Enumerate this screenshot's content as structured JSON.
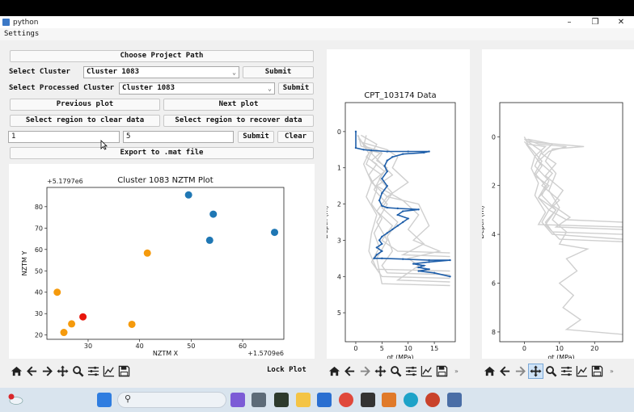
{
  "window": {
    "title": "python"
  },
  "menu": {
    "settings": "Settings"
  },
  "controls": {
    "choose_path": "Choose Project Path",
    "select_cluster_label": "Select Cluster",
    "select_cluster_value": "Cluster 1083",
    "submit1": "Submit",
    "select_processed_label": "Select Processed Cluster",
    "select_processed_value": "Cluster 1083",
    "submit2": "Submit",
    "prev_plot": "Previous plot",
    "next_plot": "Next plot",
    "clear_region": "Select region to clear data",
    "recover_region": "Select region to recover data",
    "input_a": "1",
    "input_b": "5",
    "submit3": "Submit",
    "clear": "Clear",
    "export": "Export to .mat file",
    "lock_plot": "Lock Plot"
  },
  "scatter_chart": {
    "chart_data": {
      "type": "scatter",
      "title": "Cluster 1083 NZTM Plot",
      "xlabel": "NZTM X",
      "ylabel": "NZTM Y",
      "x_offset_label": "+1.5709e6",
      "y_offset_label": "+5.1797e6",
      "xlim": [
        22,
        68
      ],
      "ylim": [
        18,
        89
      ],
      "xticks": [
        30,
        40,
        50,
        60
      ],
      "yticks": [
        20,
        30,
        40,
        50,
        60,
        70,
        80
      ],
      "points": [
        {
          "x": 49.5,
          "y": 85.5,
          "color": "#1f77b4"
        },
        {
          "x": 54.3,
          "y": 76.5,
          "color": "#1f77b4"
        },
        {
          "x": 53.6,
          "y": 64.3,
          "color": "#1f77b4"
        },
        {
          "x": 66.2,
          "y": 68.0,
          "color": "#1f77b4"
        },
        {
          "x": 41.5,
          "y": 58.3,
          "color": "#f59a0c"
        },
        {
          "x": 24.0,
          "y": 40.0,
          "color": "#f59a0c"
        },
        {
          "x": 29.0,
          "y": 28.5,
          "color": "#e8160c"
        },
        {
          "x": 26.8,
          "y": 25.2,
          "color": "#f59a0c"
        },
        {
          "x": 38.5,
          "y": 25.0,
          "color": "#f59a0c"
        },
        {
          "x": 25.3,
          "y": 21.2,
          "color": "#f59a0c"
        }
      ]
    }
  },
  "cpt_chart": {
    "chart_data": {
      "type": "line",
      "title": "CPT_103174 Data",
      "xlabel": "qt (MPa)",
      "ylabel": "Depth (m)",
      "xlim": [
        -2,
        19
      ],
      "ylim": [
        5.8,
        -0.8
      ],
      "xticks": [
        0,
        5,
        10,
        15
      ],
      "yticks": [
        0,
        1,
        2,
        3,
        4,
        5
      ],
      "highlight_color": "#1f5faa",
      "background_color": "#cfcfcf",
      "series": [
        {
          "highlight": true,
          "points": [
            [
              0,
              0
            ],
            [
              0,
              0.45
            ],
            [
              1.5,
              0.5
            ],
            [
              3,
              0.52
            ],
            [
              6,
              0.55
            ],
            [
              10,
              0.55
            ],
            [
              14,
              0.55
            ],
            [
              13,
              0.58
            ],
            [
              9,
              0.62
            ],
            [
              7,
              0.7
            ],
            [
              6,
              0.8
            ],
            [
              5.5,
              0.95
            ],
            [
              6,
              1.1
            ],
            [
              5,
              1.3
            ],
            [
              6,
              1.5
            ],
            [
              5,
              1.7
            ],
            [
              4.5,
              1.9
            ],
            [
              5,
              2.05
            ],
            [
              6,
              2.1
            ],
            [
              8,
              2.12
            ],
            [
              12,
              2.15
            ],
            [
              9,
              2.2
            ],
            [
              8,
              2.3
            ],
            [
              10,
              2.4
            ],
            [
              9,
              2.5
            ],
            [
              8,
              2.6
            ],
            [
              7,
              2.7
            ],
            [
              6,
              2.8
            ],
            [
              5,
              2.9
            ],
            [
              4.5,
              3.0
            ],
            [
              5,
              3.1
            ],
            [
              4,
              3.2
            ],
            [
              5,
              3.3
            ],
            [
              4,
              3.4
            ],
            [
              3.5,
              3.5
            ],
            [
              5,
              3.5
            ],
            [
              9,
              3.52
            ],
            [
              14,
              3.55
            ],
            [
              18,
              3.55
            ],
            [
              14,
              3.6
            ],
            [
              11,
              3.65
            ],
            [
              13,
              3.7
            ],
            [
              12,
              3.75
            ],
            [
              14,
              3.8
            ],
            [
              12,
              3.85
            ],
            [
              15,
              3.9
            ],
            [
              18,
              4.0
            ]
          ]
        },
        {
          "highlight": false,
          "points": [
            [
              0.5,
              0.1
            ],
            [
              1,
              0.4
            ],
            [
              3,
              0.5
            ],
            [
              2,
              0.7
            ],
            [
              4,
              0.9
            ],
            [
              2.5,
              1.2
            ],
            [
              4,
              1.6
            ],
            [
              3,
              2.0
            ],
            [
              5,
              2.4
            ],
            [
              3.5,
              2.8
            ],
            [
              4.5,
              3.2
            ],
            [
              3,
              3.6
            ],
            [
              5,
              4.0
            ],
            [
              18,
              4.05
            ]
          ]
        },
        {
          "highlight": false,
          "points": [
            [
              0.8,
              0.2
            ],
            [
              2,
              0.5
            ],
            [
              5,
              0.6
            ],
            [
              4,
              0.8
            ],
            [
              6,
              1.0
            ],
            [
              4.5,
              1.3
            ],
            [
              7,
              1.7
            ],
            [
              5,
              2.1
            ],
            [
              8,
              2.5
            ],
            [
              6,
              2.9
            ],
            [
              7,
              3.3
            ],
            [
              5,
              3.7
            ],
            [
              6,
              3.9
            ],
            [
              18,
              3.95
            ]
          ]
        },
        {
          "highlight": false,
          "points": [
            [
              1,
              0.1
            ],
            [
              4,
              0.35
            ],
            [
              3,
              0.6
            ],
            [
              5,
              0.9
            ],
            [
              7,
              1.2
            ],
            [
              4,
              1.5
            ],
            [
              9,
              1.9
            ],
            [
              12,
              2.3
            ],
            [
              10,
              2.7
            ],
            [
              13,
              3.1
            ],
            [
              9,
              3.4
            ],
            [
              18,
              3.45
            ]
          ]
        },
        {
          "highlight": false,
          "points": [
            [
              0.3,
              0.1
            ],
            [
              2.5,
              0.6
            ],
            [
              1.5,
              0.9
            ],
            [
              3,
              1.4
            ],
            [
              2,
              1.8
            ],
            [
              4,
              2.3
            ],
            [
              3,
              2.8
            ],
            [
              2.5,
              3.3
            ],
            [
              4,
              3.8
            ],
            [
              18,
              3.85
            ]
          ]
        },
        {
          "highlight": false,
          "points": [
            [
              1.2,
              0.3
            ],
            [
              6,
              0.5
            ],
            [
              8,
              0.7
            ],
            [
              7,
              1.0
            ],
            [
              10,
              1.4
            ],
            [
              6,
              1.8
            ],
            [
              12,
              2.0
            ],
            [
              14,
              2.6
            ],
            [
              11,
              3.0
            ],
            [
              16,
              3.3
            ],
            [
              10,
              3.5
            ],
            [
              12,
              3.7
            ],
            [
              8,
              4.1
            ],
            [
              18,
              4.15
            ]
          ]
        },
        {
          "highlight": false,
          "points": [
            [
              0.5,
              0.2
            ],
            [
              3,
              0.55
            ],
            [
              2,
              0.9
            ],
            [
              5,
              1.2
            ],
            [
              3.5,
              1.6
            ],
            [
              6,
              2.0
            ],
            [
              4,
              2.5
            ],
            [
              6,
              3.0
            ],
            [
              4,
              3.5
            ],
            [
              5,
              4.2
            ],
            [
              18,
              4.25
            ]
          ]
        },
        {
          "highlight": false,
          "points": [
            [
              2,
              0.1
            ],
            [
              1.5,
              0.4
            ],
            [
              5,
              0.55
            ],
            [
              3,
              0.8
            ],
            [
              5.5,
              1.1
            ],
            [
              3,
              1.4
            ],
            [
              6,
              1.8
            ],
            [
              4,
              2.2
            ],
            [
              7,
              2.6
            ],
            [
              5,
              3.0
            ],
            [
              8,
              3.3
            ],
            [
              18,
              3.35
            ]
          ]
        }
      ]
    }
  },
  "right_chart": {
    "chart_data": {
      "type": "line",
      "title": "",
      "xlabel": "qt (MPa)",
      "ylabel": "Depth (m)",
      "xlim": [
        -7,
        28
      ],
      "ylim": [
        8.4,
        -1.4
      ],
      "xticks": [
        0,
        10,
        20
      ],
      "yticks": [
        0,
        2,
        4,
        6,
        8
      ],
      "background_color": "#cfcfcf",
      "series": [
        {
          "points": [
            [
              0,
              0
            ],
            [
              1,
              0.3
            ],
            [
              6,
              0.4
            ],
            [
              3,
              0.8
            ],
            [
              5,
              1.2
            ],
            [
              3,
              1.6
            ],
            [
              7,
              2.0
            ],
            [
              4,
              2.5
            ],
            [
              9,
              3.0
            ],
            [
              6,
              3.5
            ],
            [
              8,
              3.9
            ],
            [
              28,
              4.0
            ]
          ]
        },
        {
          "points": [
            [
              0.5,
              0.1
            ],
            [
              4,
              0.3
            ],
            [
              12,
              0.4
            ],
            [
              7,
              0.6
            ],
            [
              4,
              1.0
            ],
            [
              8,
              1.5
            ],
            [
              5,
              2.0
            ],
            [
              10,
              2.6
            ],
            [
              7,
              3.0
            ],
            [
              12,
              3.4
            ],
            [
              28,
              3.5
            ]
          ]
        },
        {
          "points": [
            [
              0,
              0.2
            ],
            [
              2,
              0.5
            ],
            [
              5,
              1.0
            ],
            [
              3,
              1.5
            ],
            [
              6,
              2.0
            ],
            [
              4,
              2.5
            ],
            [
              7,
              3.0
            ],
            [
              5,
              3.5
            ],
            [
              8,
              4.0
            ],
            [
              28,
              4.2
            ]
          ]
        },
        {
          "points": [
            [
              1,
              0.1
            ],
            [
              8,
              0.3
            ],
            [
              5,
              0.7
            ],
            [
              9,
              1.1
            ],
            [
              6,
              1.6
            ],
            [
              11,
              2.2
            ],
            [
              8,
              2.8
            ],
            [
              13,
              3.3
            ],
            [
              9,
              3.7
            ],
            [
              28,
              3.8
            ]
          ]
        },
        {
          "points": [
            [
              0.5,
              0.3
            ],
            [
              3,
              0.8
            ],
            [
              2,
              1.3
            ],
            [
              4,
              1.9
            ],
            [
              3,
              2.4
            ],
            [
              6,
              3.1
            ],
            [
              4,
              3.6
            ],
            [
              28,
              3.7
            ]
          ]
        },
        {
          "points": [
            [
              1,
              0.2
            ],
            [
              17,
              0.4
            ],
            [
              8,
              0.5
            ],
            [
              6,
              1.0
            ],
            [
              9,
              1.5
            ],
            [
              7,
              2.2
            ],
            [
              10,
              2.9
            ],
            [
              8,
              3.4
            ],
            [
              12,
              3.9
            ],
            [
              10,
              4.4
            ],
            [
              18,
              4.6
            ],
            [
              12,
              5.0
            ],
            [
              15,
              5.5
            ],
            [
              10,
              6.0
            ],
            [
              14,
              6.5
            ],
            [
              11,
              7.0
            ],
            [
              16,
              7.5
            ],
            [
              12,
              7.9
            ],
            [
              28,
              8.1
            ]
          ]
        },
        {
          "points": [
            [
              0,
              0.1
            ],
            [
              5,
              0.6
            ],
            [
              3,
              1.2
            ],
            [
              7,
              1.8
            ],
            [
              5,
              2.4
            ],
            [
              9,
              3.0
            ],
            [
              6,
              3.6
            ],
            [
              10,
              4.2
            ],
            [
              28,
              4.3
            ]
          ]
        }
      ]
    }
  }
}
